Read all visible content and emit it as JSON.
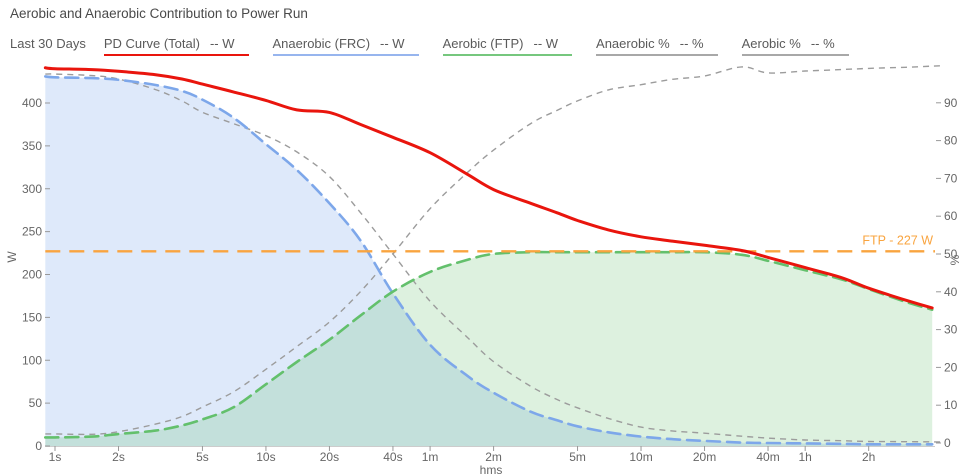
{
  "title": "Aerobic and Anaerobic Contribution to Power Run",
  "legend": {
    "period": "Last 30 Days",
    "items": [
      {
        "label": "PD Curve (Total)",
        "value": "-- W",
        "color": "#e9150d"
      },
      {
        "label": "Anaerobic (FRC)",
        "value": "-- W",
        "color": "#97b5ee"
      },
      {
        "label": "Aerobic (FTP)",
        "value": "-- W",
        "color": "#76c77e"
      },
      {
        "label": "Anaerobic %",
        "value": "-- %",
        "color": "#a8a8a8"
      },
      {
        "label": "Aerobic %",
        "value": "-- %",
        "color": "#a8a8a8"
      }
    ]
  },
  "ftp_annotation": {
    "label": "FTP - 227 W",
    "value_w": 227,
    "color": "#f9a43f"
  },
  "chart_data": {
    "type": "line",
    "title": "Aerobic and Anaerobic Contribution to Power Run",
    "x_axis": {
      "title": "hms",
      "scale": "log",
      "ticks": [
        {
          "t": 1,
          "label": "1s"
        },
        {
          "t": 2,
          "label": "2s"
        },
        {
          "t": 5,
          "label": "5s"
        },
        {
          "t": 10,
          "label": "10s"
        },
        {
          "t": 20,
          "label": "20s"
        },
        {
          "t": 40,
          "label": "40s"
        },
        {
          "t": 60,
          "label": "1m"
        },
        {
          "t": 120,
          "label": "2m"
        },
        {
          "t": 300,
          "label": "5m"
        },
        {
          "t": 600,
          "label": "10m"
        },
        {
          "t": 1200,
          "label": "20m"
        },
        {
          "t": 2400,
          "label": "40m"
        },
        {
          "t": 3600,
          "label": "1h"
        },
        {
          "t": 7200,
          "label": "2h"
        }
      ]
    },
    "y_left": {
      "title": "W",
      "ticks": [
        0,
        50,
        100,
        150,
        200,
        250,
        300,
        350,
        400
      ],
      "range": [
        0,
        450
      ]
    },
    "y_right": {
      "title": "%",
      "ticks": [
        0,
        10,
        20,
        30,
        40,
        50,
        60,
        70,
        80,
        90
      ],
      "range": [
        0,
        101
      ]
    },
    "ftp_line": {
      "value": 227,
      "label": "FTP - 227 W",
      "color": "#f9a43f"
    },
    "times_s": [
      0.9,
      1,
      1.5,
      2,
      3,
      4,
      5,
      7,
      10,
      14,
      20,
      28,
      40,
      60,
      90,
      120,
      180,
      240,
      300,
      420,
      600,
      840,
      1200,
      1800,
      2400,
      3600,
      5400,
      7200,
      10800,
      14400,
      15800
    ],
    "series": [
      {
        "name": "PD Curve (Total)",
        "unit": "W",
        "axis": "W",
        "color": "#e9150d",
        "style": "solid",
        "width": 3,
        "fill": false,
        "values": [
          441,
          440,
          439,
          437,
          433,
          428,
          422,
          413,
          403,
          392,
          389,
          375,
          360,
          342,
          317,
          299,
          283,
          272,
          263,
          252,
          244,
          239,
          234,
          228,
          220,
          208,
          196,
          184,
          170,
          161,
          null
        ]
      },
      {
        "name": "Anaerobic (FRC)",
        "unit": "W",
        "axis": "W",
        "color": "#7da7ea",
        "style": "dashed",
        "width": 2.6,
        "fill": true,
        "fill_color": "rgba(125,167,234,0.25)",
        "values": [
          431,
          430,
          429,
          427,
          421,
          414,
          404,
          383,
          352,
          322,
          283,
          240,
          178,
          118,
          82,
          62,
          40,
          30,
          23,
          16,
          11,
          8,
          6,
          4,
          3.5,
          3,
          2.5,
          2,
          2,
          2,
          null
        ]
      },
      {
        "name": "Aerobic (FTP)",
        "unit": "W",
        "axis": "W",
        "color": "#63c06c",
        "style": "dashed",
        "width": 2.6,
        "fill": true,
        "fill_color": "rgba(99,192,108,0.22)",
        "values": [
          10,
          10,
          11,
          14,
          18,
          24,
          31,
          45,
          72,
          98,
          124,
          152,
          180,
          203,
          217,
          224,
          226,
          226,
          226,
          226,
          226,
          226,
          226,
          223,
          216,
          205,
          194,
          183,
          168,
          159,
          null
        ]
      },
      {
        "name": "Anaerobic %",
        "unit": "%",
        "axis": "%",
        "color": "#9c9c9c",
        "style": "dashed-small",
        "width": 1.4,
        "fill": false,
        "values": [
          97.6,
          97.6,
          97.2,
          96.3,
          93.5,
          90.5,
          87.5,
          84.5,
          81.3,
          77,
          70.5,
          61,
          50,
          37.5,
          28,
          21.5,
          15,
          11.5,
          9.3,
          6.5,
          4.2,
          3.2,
          2.6,
          1.8,
          1.3,
          0.8,
          0.6,
          0.4,
          0.35,
          0.3,
          0.3
        ]
      },
      {
        "name": "Aerobic %",
        "unit": "%",
        "axis": "%",
        "color": "#9c9c9c",
        "style": "dashed-small",
        "width": 1.4,
        "fill": false,
        "values": [
          2.4,
          2.4,
          2.3,
          3,
          5,
          7,
          9.5,
          13.5,
          19.5,
          25.5,
          32,
          40,
          50,
          62,
          71.5,
          77.5,
          84.5,
          88,
          90.5,
          93.4,
          94.8,
          96.2,
          97.1,
          99.5,
          97.9,
          98.4,
          98.8,
          99.1,
          99.4,
          99.7,
          99.8
        ]
      }
    ]
  }
}
